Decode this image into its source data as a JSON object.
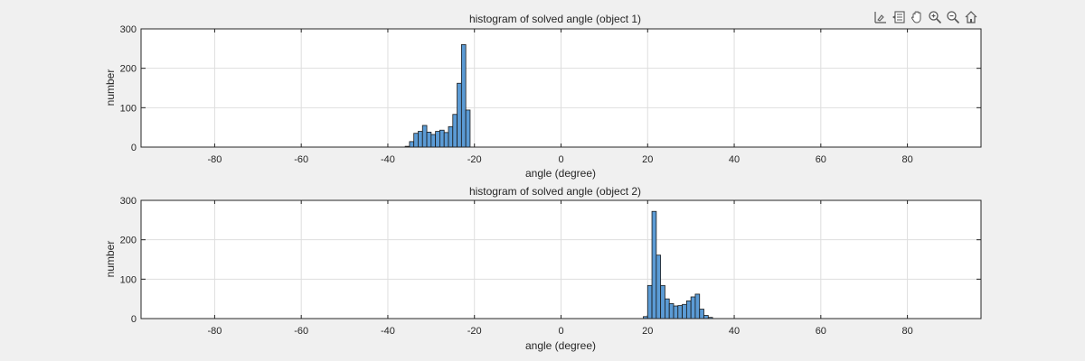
{
  "toolbar": {
    "icons": [
      "brush-data-icon",
      "data-tips-icon",
      "pan-hand-icon",
      "zoom-in-icon",
      "zoom-out-icon",
      "restore-view-icon"
    ]
  },
  "colors": {
    "background": "#f0f0f0",
    "axes_bg": "#ffffff",
    "bar_fill": "#5b9bd5",
    "bar_edge": "#1a1a1a",
    "grid": "#dedede",
    "text": "#262626"
  },
  "chart_data": [
    {
      "type": "bar",
      "title": "histogram of solved angle (object 1)",
      "xlabel": "angle (degree)",
      "ylabel": "number",
      "xlim": [
        -97,
        97
      ],
      "ylim": [
        0,
        300
      ],
      "xticks": [
        -80,
        -60,
        -40,
        -20,
        0,
        20,
        40,
        60,
        80
      ],
      "xtick_labels": [
        "-80",
        "-60",
        "-40",
        "-20",
        "0",
        "20",
        "40",
        "60",
        "80"
      ],
      "yticks": [
        0,
        100,
        200,
        300
      ],
      "ytick_labels": [
        "0",
        "100",
        "200",
        "300"
      ],
      "grid": true,
      "bin_width": 1,
      "bins": [
        {
          "x0": -36,
          "y": 2
        },
        {
          "x0": -35,
          "y": 14
        },
        {
          "x0": -34,
          "y": 35
        },
        {
          "x0": -33,
          "y": 40
        },
        {
          "x0": -32,
          "y": 55
        },
        {
          "x0": -31,
          "y": 38
        },
        {
          "x0": -30,
          "y": 32
        },
        {
          "x0": -29,
          "y": 40
        },
        {
          "x0": -28,
          "y": 43
        },
        {
          "x0": -27,
          "y": 37
        },
        {
          "x0": -26,
          "y": 52
        },
        {
          "x0": -25,
          "y": 83
        },
        {
          "x0": -24,
          "y": 162
        },
        {
          "x0": -23,
          "y": 260
        },
        {
          "x0": -22,
          "y": 94
        }
      ]
    },
    {
      "type": "bar",
      "title": "histogram of solved angle (object 2)",
      "xlabel": "angle (degree)",
      "ylabel": "number",
      "xlim": [
        -97,
        97
      ],
      "ylim": [
        0,
        300
      ],
      "xticks": [
        -80,
        -60,
        -40,
        -20,
        0,
        20,
        40,
        60,
        80
      ],
      "xtick_labels": [
        "-80",
        "-60",
        "-40",
        "-20",
        "0",
        "20",
        "40",
        "60",
        "80"
      ],
      "yticks": [
        0,
        100,
        200,
        300
      ],
      "ytick_labels": [
        "0",
        "100",
        "200",
        "300"
      ],
      "grid": true,
      "bin_width": 1,
      "bins": [
        {
          "x0": 19,
          "y": 5
        },
        {
          "x0": 20,
          "y": 84
        },
        {
          "x0": 21,
          "y": 272
        },
        {
          "x0": 22,
          "y": 161
        },
        {
          "x0": 23,
          "y": 84
        },
        {
          "x0": 24,
          "y": 50
        },
        {
          "x0": 25,
          "y": 38
        },
        {
          "x0": 26,
          "y": 32
        },
        {
          "x0": 27,
          "y": 33
        },
        {
          "x0": 28,
          "y": 36
        },
        {
          "x0": 29,
          "y": 45
        },
        {
          "x0": 30,
          "y": 55
        },
        {
          "x0": 31,
          "y": 62
        },
        {
          "x0": 32,
          "y": 24
        },
        {
          "x0": 33,
          "y": 8
        },
        {
          "x0": 34,
          "y": 3
        }
      ]
    }
  ]
}
